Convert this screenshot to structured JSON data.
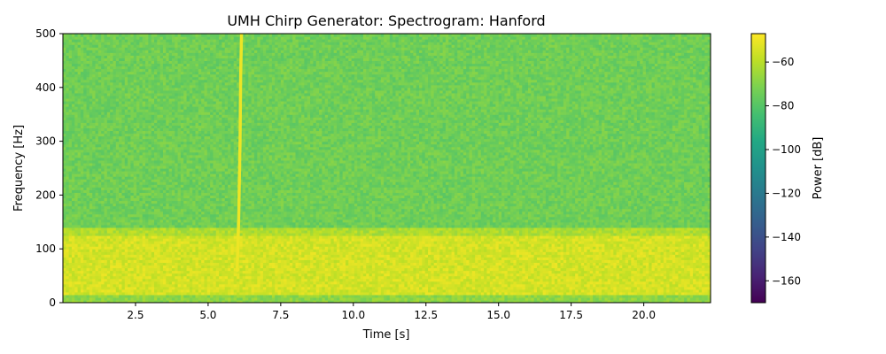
{
  "chart_data": {
    "type": "heatmap",
    "title": "UMH Chirp Generator: Spectrogram: Hanford",
    "xlabel": "Time [s]",
    "ylabel": "Frequency [Hz]",
    "xlim": [
      0.0,
      22.3
    ],
    "ylim": [
      0,
      500
    ],
    "x_ticks": [
      2.5,
      5.0,
      7.5,
      10.0,
      12.5,
      15.0,
      17.5,
      20.0
    ],
    "x_tick_labels": [
      "2.5",
      "5.0",
      "7.5",
      "10.0",
      "12.5",
      "15.0",
      "17.5",
      "20.0"
    ],
    "y_ticks": [
      0,
      100,
      200,
      300,
      400,
      500
    ],
    "y_tick_labels": [
      "0",
      "100",
      "200",
      "300",
      "400",
      "500"
    ],
    "colorbar": {
      "label": "Power [dB]",
      "range": [
        -170,
        -47
      ],
      "ticks": [
        -60,
        -80,
        -100,
        -120,
        -140,
        -160
      ],
      "tick_labels": [
        "−60",
        "−80",
        "−100",
        "−120",
        "−140",
        "−160"
      ],
      "colormap": "viridis"
    },
    "background_power_db": {
      "band_0_15_hz": -68,
      "band_15_125_hz": -55,
      "band_125_140_hz": -62,
      "band_140_500_hz": -74
    },
    "chirp": {
      "time_s": [
        6.0,
        6.05,
        6.1,
        6.12,
        6.15
      ],
      "frequency_hz": [
        60,
        150,
        300,
        420,
        500
      ],
      "power_db": -50
    }
  }
}
